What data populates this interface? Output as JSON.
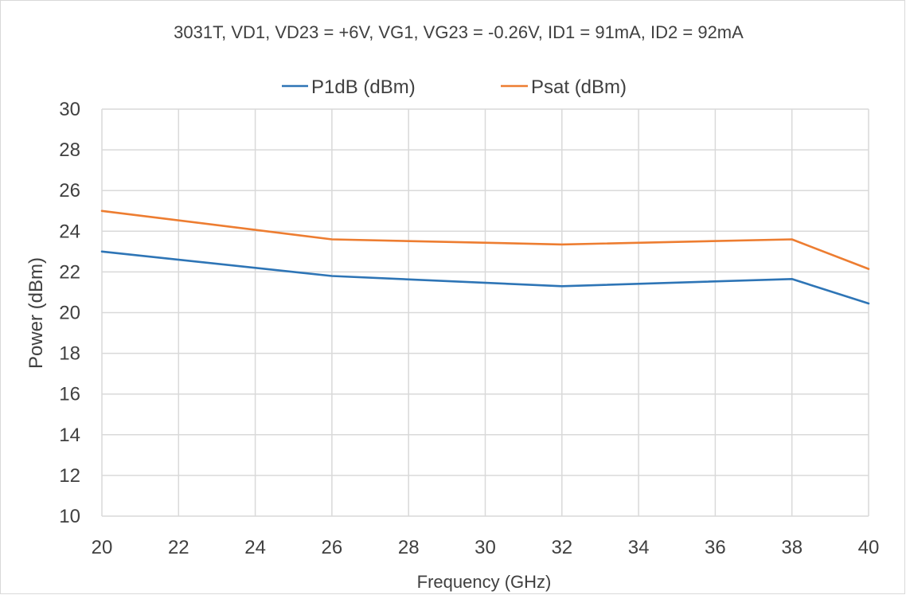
{
  "chart_data": {
    "type": "line",
    "title": "3031T, VD1, VD23 = +6V, VG1, VG23 = -0.26V, ID1 = 91mA, ID2 = 92mA",
    "xlabel": "Frequency (GHz)",
    "ylabel": "Power (dBm)",
    "xlim": [
      20,
      40
    ],
    "ylim": [
      10,
      30
    ],
    "xticks": [
      20,
      22,
      24,
      26,
      28,
      30,
      32,
      34,
      36,
      38,
      40
    ],
    "yticks": [
      10,
      12,
      14,
      16,
      18,
      20,
      22,
      24,
      26,
      28,
      30
    ],
    "grid": true,
    "legend_position": "top",
    "series": [
      {
        "name": "P1dB (dBm)",
        "color": "#2e75b6",
        "x": [
          20,
          26,
          32,
          38,
          40
        ],
        "y": [
          23.0,
          21.8,
          21.3,
          21.65,
          20.45
        ]
      },
      {
        "name": "Psat (dBm)",
        "color": "#ed7d31",
        "x": [
          20,
          26,
          32,
          38,
          40
        ],
        "y": [
          25.0,
          23.6,
          23.35,
          23.6,
          22.15
        ]
      }
    ]
  }
}
